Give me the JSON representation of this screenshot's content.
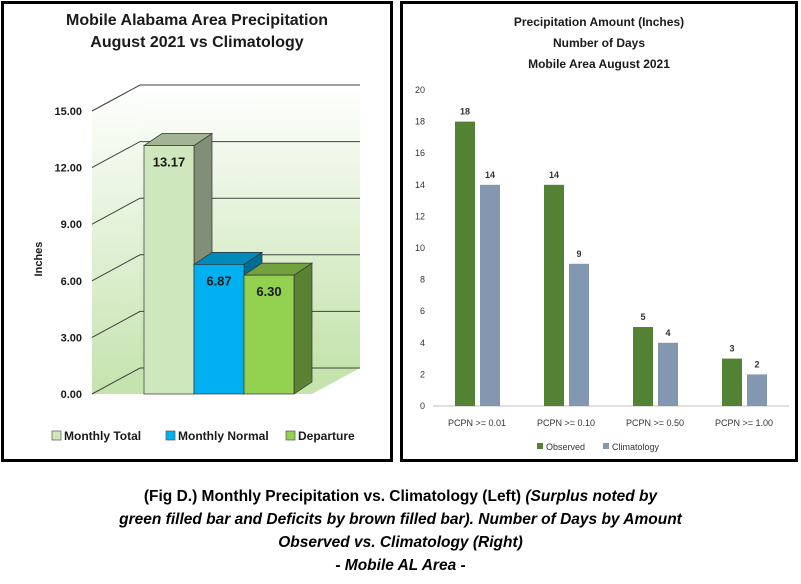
{
  "left_title_line1": "Mobile Alabama Area Precipitation",
  "left_title_line2": "August 2021 vs Climatology",
  "right_title_line1": "Precipitation Amount (Inches)",
  "right_title_line2": "Number of Days",
  "right_title_line3": "Mobile Area August 2021",
  "caption": {
    "line1_plain": "(Fig D.) Monthly Precipitation vs. Climatology (Left) ",
    "line1_italic": "(Surplus noted by",
    "line2": "green filled bar and Deficits by brown filled bar). Number of Days by Amount",
    "line3": "Observed vs. Climatology (Right)",
    "line4": "- Mobile AL Area -"
  },
  "chart_data": [
    {
      "type": "bar",
      "title": "Mobile Alabama Area Precipitation August 2021 vs Climatology",
      "ylabel": "Inches",
      "ylim": [
        0,
        15
      ],
      "yticks": [
        "0.00",
        "3.00",
        "6.00",
        "9.00",
        "12.00",
        "15.00"
      ],
      "bars": [
        {
          "name": "Monthly Total",
          "value": 13.17,
          "label": "13.17",
          "color": "#cfe7bd"
        },
        {
          "name": "Monthly Normal",
          "value": 6.87,
          "label": "6.87",
          "color": "#00b0f0"
        },
        {
          "name": "Departure",
          "value": 6.3,
          "label": "6.30",
          "color": "#92d050"
        }
      ],
      "legend": "bottom",
      "background": "gradient-green"
    },
    {
      "type": "bar",
      "title": "Precipitation Amount (Inches) Number of Days Mobile Area August 2021",
      "categories": [
        "PCPN >= 0.01",
        "PCPN >= 0.10",
        "PCPN >= 0.50",
        "PCPN >= 1.00"
      ],
      "ylim": [
        0,
        20
      ],
      "yticks": [
        "0",
        "2",
        "4",
        "6",
        "8",
        "10",
        "12",
        "14",
        "16",
        "18",
        "20"
      ],
      "series": [
        {
          "name": "Observed",
          "values": [
            18,
            14,
            5,
            3
          ],
          "color": "#548235"
        },
        {
          "name": "Climatology",
          "values": [
            14,
            9,
            4,
            2
          ],
          "color": "#8497b0"
        }
      ],
      "legend": "bottom"
    }
  ]
}
